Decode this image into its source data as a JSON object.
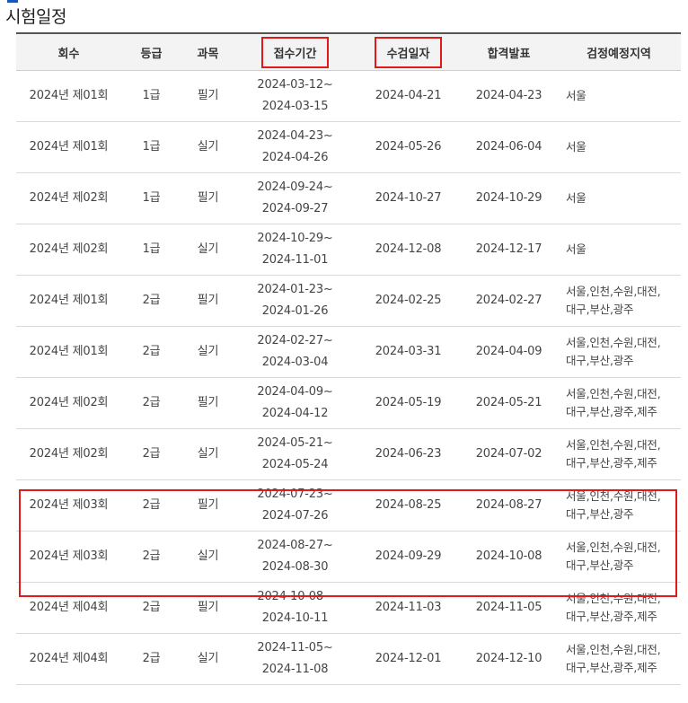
{
  "page": {
    "title": "시험일정"
  },
  "table": {
    "headers": [
      "회수",
      "등급",
      "과목",
      "접수기간",
      "수검일자",
      "합격발표",
      "검정예정지역"
    ],
    "rows": [
      {
        "round": "2024년 제01회",
        "grade": "1급",
        "subject": "필기",
        "reg_start": "2024-03-12~",
        "reg_end": "2024-03-15",
        "exam_date": "2024-04-21",
        "result_date": "2024-04-23",
        "region_1": "서울",
        "region_2": ""
      },
      {
        "round": "2024년 제01회",
        "grade": "1급",
        "subject": "실기",
        "reg_start": "2024-04-23~",
        "reg_end": "2024-04-26",
        "exam_date": "2024-05-26",
        "result_date": "2024-06-04",
        "region_1": "서울",
        "region_2": ""
      },
      {
        "round": "2024년 제02회",
        "grade": "1급",
        "subject": "필기",
        "reg_start": "2024-09-24~",
        "reg_end": "2024-09-27",
        "exam_date": "2024-10-27",
        "result_date": "2024-10-29",
        "region_1": "서울",
        "region_2": ""
      },
      {
        "round": "2024년 제02회",
        "grade": "1급",
        "subject": "실기",
        "reg_start": "2024-10-29~",
        "reg_end": "2024-11-01",
        "exam_date": "2024-12-08",
        "result_date": "2024-12-17",
        "region_1": "서울",
        "region_2": ""
      },
      {
        "round": "2024년 제01회",
        "grade": "2급",
        "subject": "필기",
        "reg_start": "2024-01-23~",
        "reg_end": "2024-01-26",
        "exam_date": "2024-02-25",
        "result_date": "2024-02-27",
        "region_1": "서울,인천,수원,대전,",
        "region_2": "대구,부산,광주"
      },
      {
        "round": "2024년 제01회",
        "grade": "2급",
        "subject": "실기",
        "reg_start": "2024-02-27~",
        "reg_end": "2024-03-04",
        "exam_date": "2024-03-31",
        "result_date": "2024-04-09",
        "region_1": "서울,인천,수원,대전,",
        "region_2": "대구,부산,광주"
      },
      {
        "round": "2024년 제02회",
        "grade": "2급",
        "subject": "필기",
        "reg_start": "2024-04-09~",
        "reg_end": "2024-04-12",
        "exam_date": "2024-05-19",
        "result_date": "2024-05-21",
        "region_1": "서울,인천,수원,대전,",
        "region_2": "대구,부산,광주,제주"
      },
      {
        "round": "2024년 제02회",
        "grade": "2급",
        "subject": "실기",
        "reg_start": "2024-05-21~",
        "reg_end": "2024-05-24",
        "exam_date": "2024-06-23",
        "result_date": "2024-07-02",
        "region_1": "서울,인천,수원,대전,",
        "region_2": "대구,부산,광주,제주"
      },
      {
        "round": "2024년 제03회",
        "grade": "2급",
        "subject": "필기",
        "reg_start": "2024-07-23~",
        "reg_end": "2024-07-26",
        "exam_date": "2024-08-25",
        "result_date": "2024-08-27",
        "region_1": "서울,인천,수원,대전,",
        "region_2": "대구,부산,광주"
      },
      {
        "round": "2024년 제03회",
        "grade": "2급",
        "subject": "실기",
        "reg_start": "2024-08-27~",
        "reg_end": "2024-08-30",
        "exam_date": "2024-09-29",
        "result_date": "2024-10-08",
        "region_1": "서울,인천,수원,대전,",
        "region_2": "대구,부산,광주"
      },
      {
        "round": "2024년 제04회",
        "grade": "2급",
        "subject": "필기",
        "reg_start": "2024-10-08~",
        "reg_end": "2024-10-11",
        "exam_date": "2024-11-03",
        "result_date": "2024-11-05",
        "region_1": "서울,인천,수원,대전,",
        "region_2": "대구,부산,광주,제주"
      },
      {
        "round": "2024년 제04회",
        "grade": "2급",
        "subject": "실기",
        "reg_start": "2024-11-05~",
        "reg_end": "2024-11-08",
        "exam_date": "2024-12-01",
        "result_date": "2024-12-10",
        "region_1": "서울,인천,수원,대전,",
        "region_2": "대구,부산,광주,제주"
      }
    ]
  },
  "highlight": {
    "color": "#e01a1a"
  }
}
